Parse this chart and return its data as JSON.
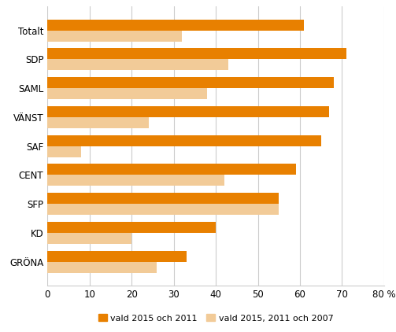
{
  "categories": [
    "Totalt",
    "SDP",
    "SAML",
    "VÄNST",
    "SAF",
    "CENT",
    "SFP",
    "KD",
    "GRÖNA"
  ],
  "vald_2015_2011": [
    61,
    71,
    68,
    67,
    65,
    59,
    55,
    40,
    33
  ],
  "vald_2015_2011_2007": [
    32,
    43,
    38,
    24,
    8,
    42,
    55,
    20,
    26
  ],
  "color_2015_2011": "#E88000",
  "color_2015_2011_2007": "#F2CB98",
  "xlim": [
    0,
    80
  ],
  "xticks": [
    0,
    10,
    20,
    30,
    40,
    50,
    60,
    70,
    80
  ],
  "xlabel_suffix": "%",
  "legend_label_1": "vald 2015 och 2011",
  "legend_label_2": "vald 2015, 2011 och 2007",
  "bar_height": 0.38,
  "grid_color": "#cccccc",
  "background_color": "#ffffff",
  "label_fontsize": 8.5,
  "tick_fontsize": 8.5
}
